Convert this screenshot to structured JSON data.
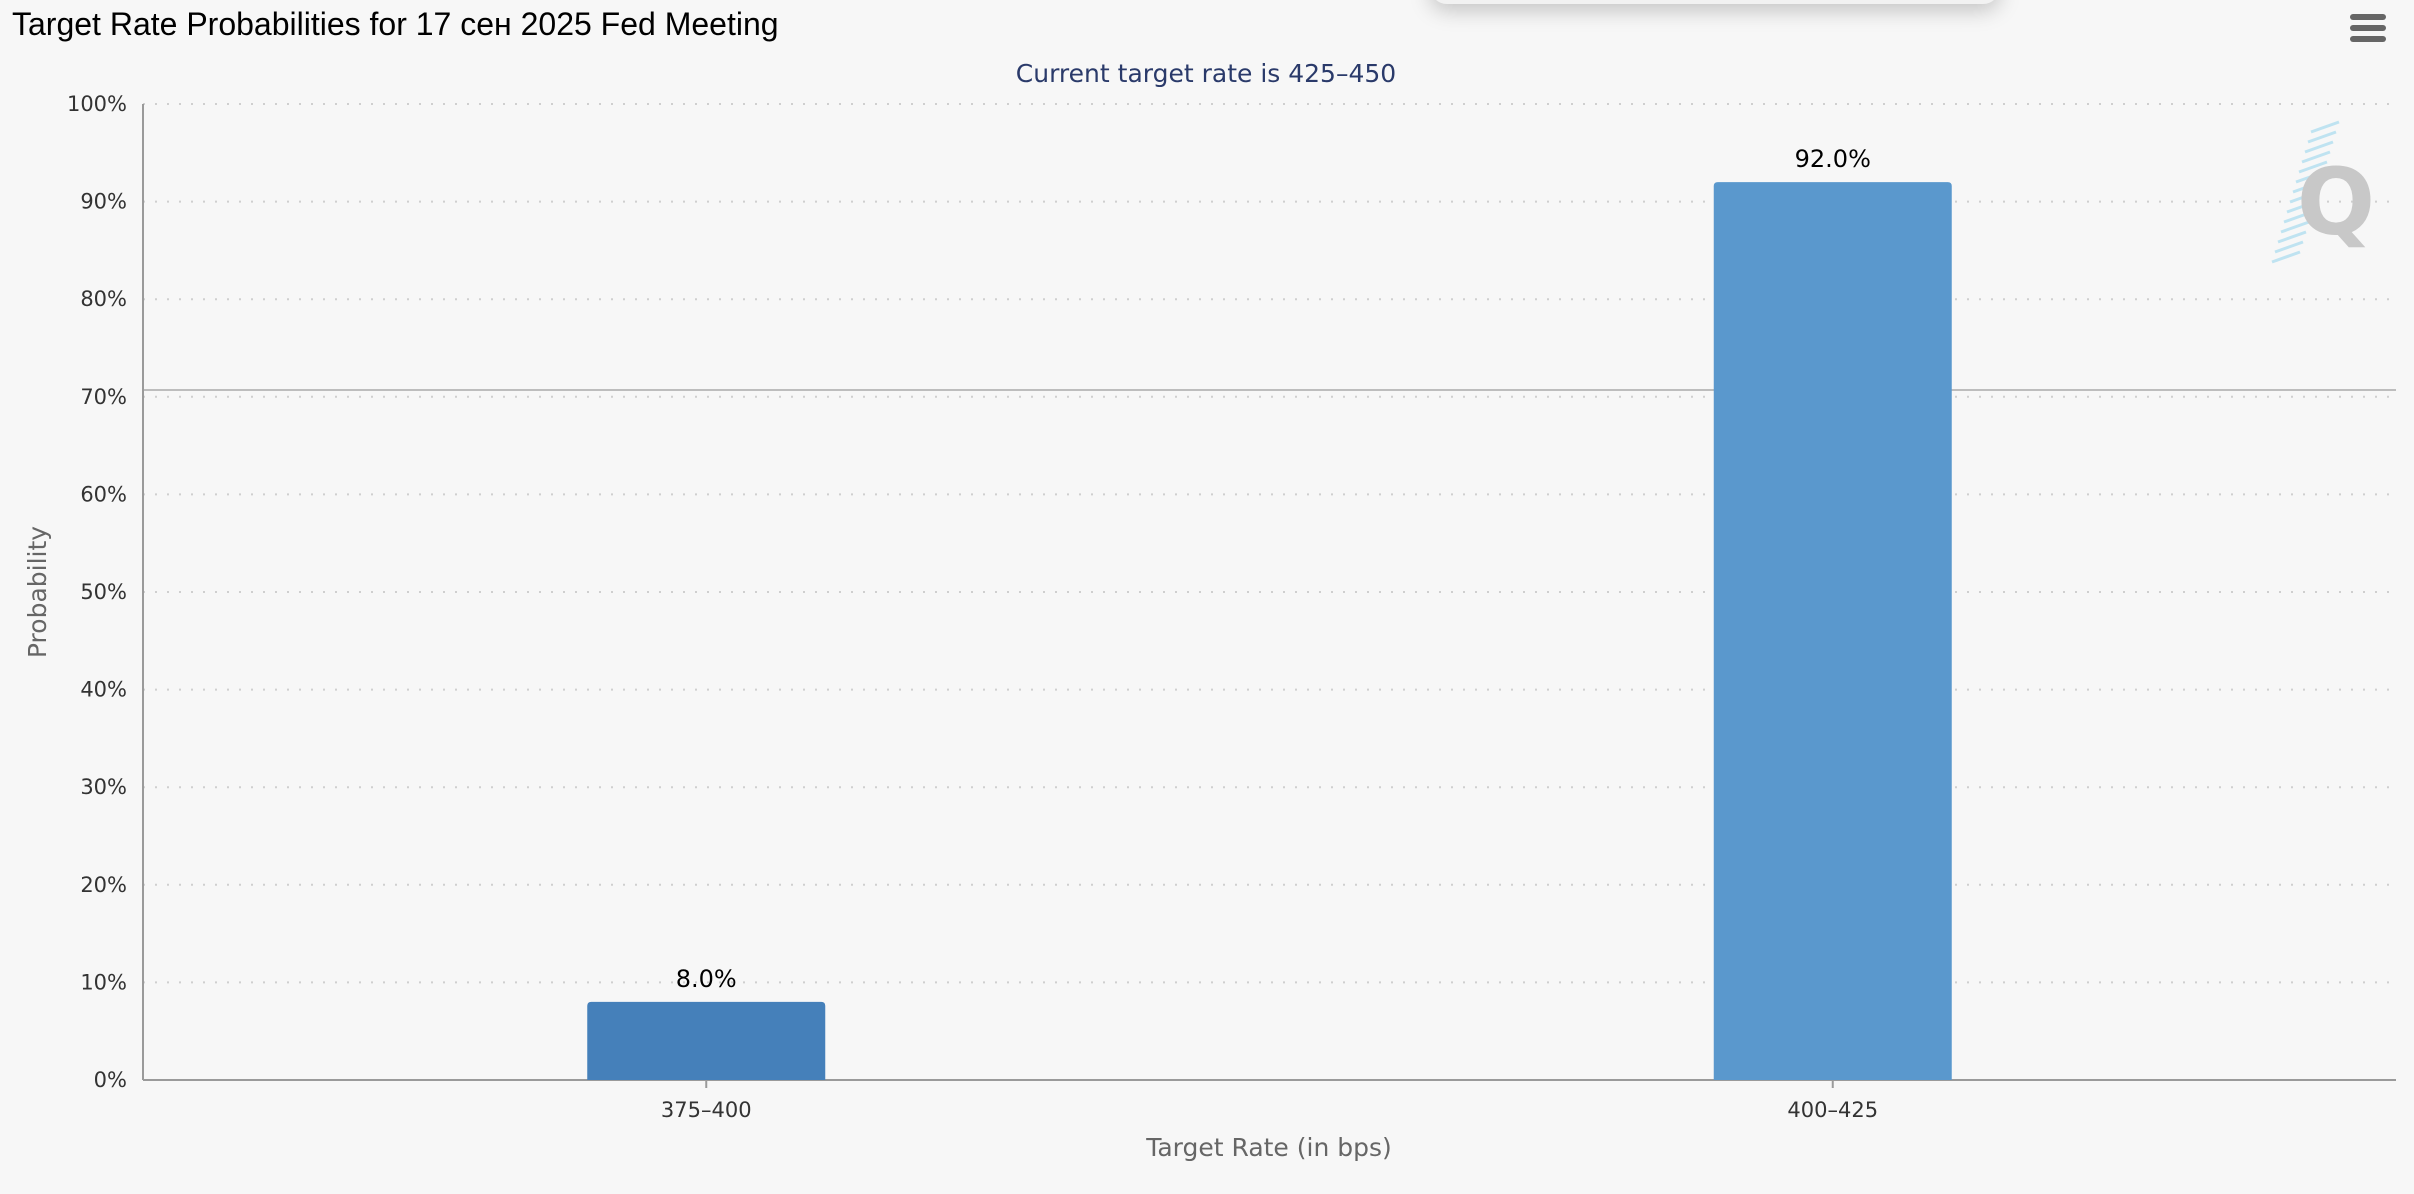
{
  "header": {
    "title": "Target Rate Probabilities for 17 сен 2025 Fed Meeting",
    "menu_icon": "hamburger-menu-icon"
  },
  "watermark": {
    "icon": "quikstrike-logo-icon",
    "letter": "Q"
  },
  "colors": {
    "background": "#f7f7f7",
    "bar_first": "#4580ba",
    "bar_second": "#5a98cd",
    "subtitle": "#2a3a6a",
    "grid": "#cccccc"
  },
  "chart_data": {
    "type": "bar",
    "title": "Target Rate Probabilities for 17 сен 2025 Fed Meeting",
    "subtitle": "Current target rate is 425–450",
    "xlabel": "Target Rate (in bps)",
    "ylabel": "Probability",
    "categories": [
      "375–400",
      "400–425"
    ],
    "values": [
      8.0,
      92.0
    ],
    "data_labels": [
      "8.0%",
      "92.0%"
    ],
    "ylim": [
      0,
      100
    ],
    "yticks": [
      "0%",
      "10%",
      "20%",
      "30%",
      "40%",
      "50%",
      "60%",
      "70%",
      "80%",
      "90%",
      "100%"
    ],
    "grid": "dotted horizontal",
    "legend": "none"
  }
}
